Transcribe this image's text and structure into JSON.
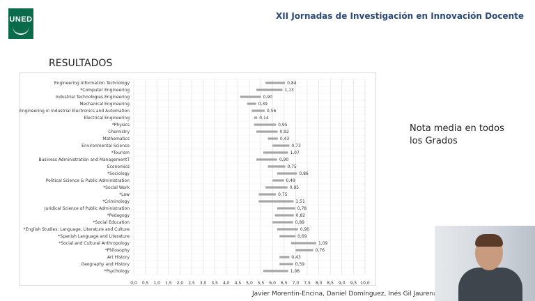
{
  "header": {
    "logo_text": "UNED",
    "title": "XII Jornadas de Investigación en Innovación Docente"
  },
  "section_title": "RESULTADOS",
  "side_note": "Nota media en todos los Grados",
  "authors": "Javier Morentin-Encina, Daniel Domínguez, Inés Gil Jaurena",
  "colors": {
    "brand": "#0a6b4a",
    "title": "#2b4a7a",
    "bar": "#a6a6a6"
  },
  "video": {
    "icons": [
      "presenter-video-icon"
    ]
  },
  "chart_data": {
    "type": "bar",
    "orientation": "horizontal",
    "xlim": [
      0,
      10
    ],
    "xticks": [
      "0,0",
      "0,5",
      "1,0",
      "1,5",
      "2,0",
      "2,5",
      "3,0",
      "3,5",
      "4,0",
      "4,5",
      "5,0",
      "5,5",
      "6,0",
      "6,5",
      "7,0",
      "7,5",
      "8,0",
      "8,5",
      "9,0",
      "9,5",
      "10,0"
    ],
    "grid": true,
    "categories": [
      "Engineering Information Technology",
      "*Computer Engineering",
      "Industrial Technologies Engineering",
      "Mechanical Engineering",
      "Engineering in Industrial Electronics and Automation",
      "Electrical Engineering",
      "*Physics",
      "Chemistry",
      "Mathematics",
      "Environmental Science",
      "*Tourism",
      "Business Administration and ManagementT",
      "Economics",
      "*Sociology",
      "Political Science & Public Administration",
      "*Social Work",
      "*Law",
      "*Criminology",
      "Juridical Science of Public Administration",
      "*Pedagogy",
      "*Social Education",
      "*English Studies: Language, Literature and Culture",
      "*Spanish Language and Literature",
      "*Social and Cultural Anthropology",
      "*Philosophy",
      "Art History",
      "Geography and History",
      "*Psychology"
    ],
    "start": [
      5.7,
      5.3,
      4.6,
      4.9,
      5.1,
      5.2,
      5.2,
      5.3,
      5.8,
      6.0,
      5.6,
      5.3,
      5.8,
      6.2,
      6.0,
      5.7,
      5.4,
      5.4,
      6.2,
      6.1,
      6.0,
      6.2,
      6.3,
      6.8,
      7.0,
      6.3,
      6.3,
      5.6
    ],
    "values": [
      0.84,
      1.13,
      0.9,
      0.39,
      0.56,
      0.14,
      0.95,
      0.92,
      0.43,
      0.73,
      1.07,
      0.9,
      0.75,
      0.86,
      0.49,
      0.95,
      0.75,
      1.51,
      0.78,
      0.82,
      0.89,
      0.9,
      0.69,
      1.09,
      0.76,
      0.43,
      0.59,
      1.08
    ],
    "value_labels": [
      "0,84",
      "1,13",
      "0,90",
      "0,39",
      "0,56",
      "0,14",
      "0,95",
      "0,92",
      "0,43",
      "0,73",
      "1,07",
      "0,90",
      "0,75",
      "0,86",
      "0,49",
      "0,95",
      "0,75",
      "1,51",
      "0,78",
      "0,82",
      "0,89",
      "0,90",
      "0,69",
      "1,09",
      "0,76",
      "0,43",
      "0,59",
      "1,08"
    ]
  }
}
